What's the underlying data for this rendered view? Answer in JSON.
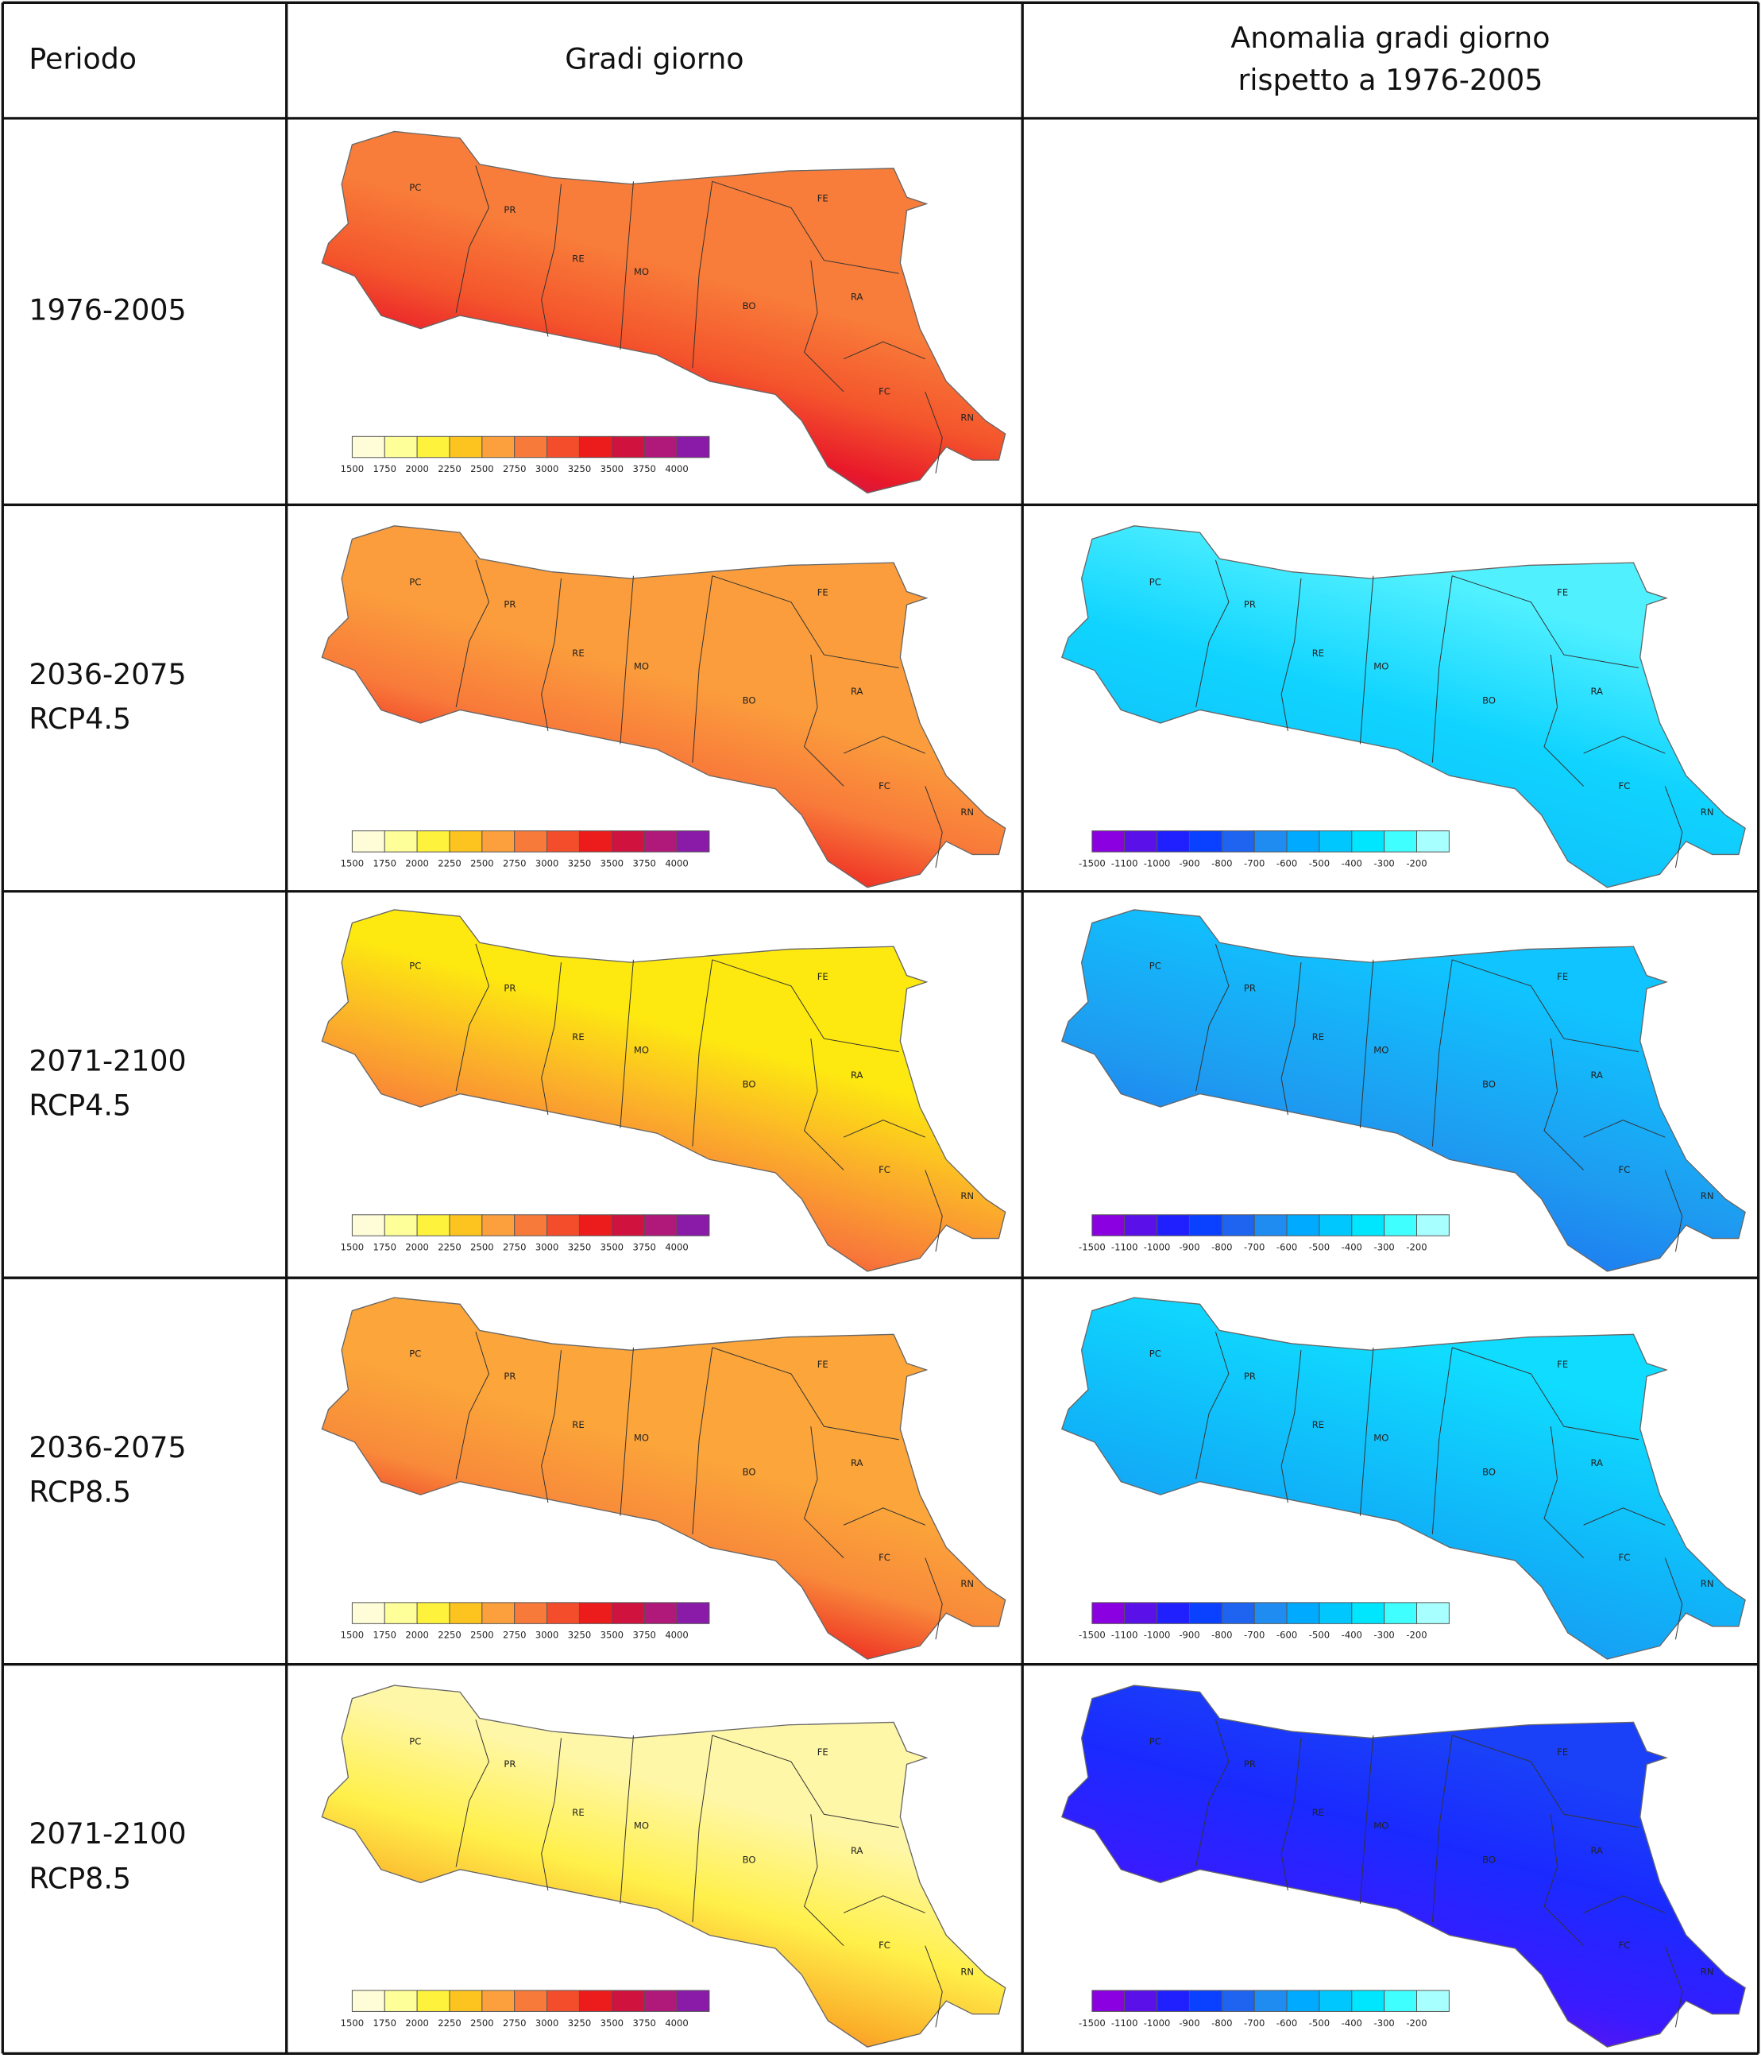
{
  "header": [
    "Periodo",
    "Gradi giorno",
    [
      "Anomalia gradi giorno",
      "rispetto a 1976-2005"
    ]
  ],
  "rows": [
    {
      "period": [
        "1976-2005"
      ],
      "anomalia_map": false
    },
    {
      "period": [
        "2036-2075",
        "RCP4.5"
      ],
      "anomalia_map": true
    },
    {
      "period": [
        "2071-2100",
        "RCP4.5"
      ],
      "anomalia_map": true
    },
    {
      "period": [
        "2036-2075",
        "RCP8.5"
      ],
      "anomalia_map": true
    },
    {
      "period": [
        "2071-2100",
        "RCP8.5"
      ],
      "anomalia_map": true
    }
  ],
  "provinces": [
    "PC",
    "PR",
    "RE",
    "MO",
    "BO",
    "FE",
    "RA",
    "FC",
    "RN"
  ],
  "legend_gradi": [
    1500,
    1750,
    2000,
    2250,
    2500,
    2750,
    3000,
    3250,
    3500,
    3750,
    4000
  ],
  "legend_anomalia": [
    -1500,
    -1100,
    -1000,
    -900,
    -800,
    -700,
    -600,
    -500,
    -400,
    -300,
    -200
  ]
}
